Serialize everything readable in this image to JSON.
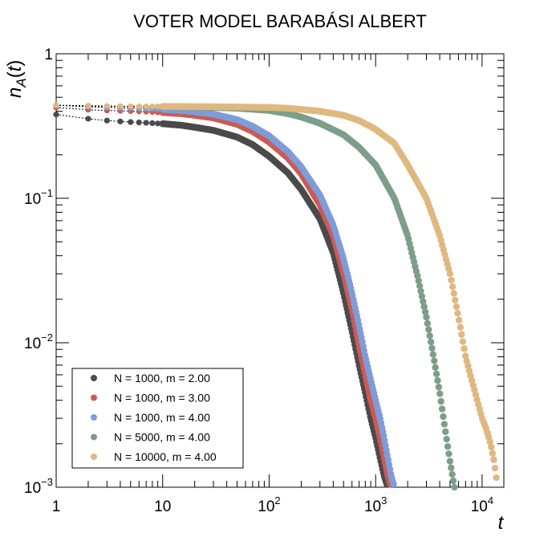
{
  "chart_data": {
    "type": "scatter",
    "title": "VOTER MODEL BARABÁSI ALBERT",
    "xlabel": "t",
    "ylabel": "n_A(t)",
    "xscale": "log",
    "yscale": "log",
    "xlim": [
      1,
      16000
    ],
    "ylim": [
      0.001,
      1
    ],
    "x_ticks": [
      {
        "value": 1,
        "base": "1",
        "exp": ""
      },
      {
        "value": 10,
        "base": "10",
        "exp": ""
      },
      {
        "value": 100,
        "base": "10",
        "exp": "2"
      },
      {
        "value": 1000,
        "base": "10",
        "exp": "3"
      },
      {
        "value": 10000,
        "base": "10",
        "exp": "4"
      }
    ],
    "y_ticks": [
      {
        "value": 1,
        "base": "1",
        "exp": ""
      },
      {
        "value": 0.1,
        "base": "10",
        "exp": "−1"
      },
      {
        "value": 0.01,
        "base": "10",
        "exp": "−2"
      },
      {
        "value": 0.001,
        "base": "10",
        "exp": "−3"
      }
    ],
    "legend_position": "bottom-left",
    "grid": false,
    "series": [
      {
        "name": "N = 1000, m = 2.00",
        "color": "#4a4a4a",
        "points": [
          [
            1,
            0.38
          ],
          [
            2,
            0.355
          ],
          [
            3,
            0.345
          ],
          [
            4,
            0.34
          ],
          [
            5,
            0.337
          ],
          [
            7,
            0.333
          ],
          [
            10,
            0.328
          ],
          [
            15,
            0.32
          ],
          [
            20,
            0.31
          ],
          [
            30,
            0.295
          ],
          [
            50,
            0.265
          ],
          [
            70,
            0.235
          ],
          [
            100,
            0.195
          ],
          [
            150,
            0.15
          ],
          [
            200,
            0.115
          ],
          [
            300,
            0.072
          ],
          [
            400,
            0.042
          ],
          [
            500,
            0.022
          ],
          [
            600,
            0.012
          ],
          [
            700,
            0.007
          ],
          [
            800,
            0.0045
          ],
          [
            900,
            0.003
          ],
          [
            1000,
            0.0022
          ],
          [
            1100,
            0.0016
          ],
          [
            1200,
            0.0012
          ],
          [
            1300,
            0.001
          ]
        ]
      },
      {
        "name": "N = 1000, m = 3.00",
        "color": "#cc5a55",
        "points": [
          [
            1,
            0.425
          ],
          [
            2,
            0.41
          ],
          [
            3,
            0.405
          ],
          [
            4,
            0.403
          ],
          [
            5,
            0.401
          ],
          [
            7,
            0.398
          ],
          [
            10,
            0.392
          ],
          [
            15,
            0.385
          ],
          [
            20,
            0.375
          ],
          [
            30,
            0.36
          ],
          [
            50,
            0.325
          ],
          [
            70,
            0.29
          ],
          [
            100,
            0.245
          ],
          [
            150,
            0.19
          ],
          [
            200,
            0.148
          ],
          [
            300,
            0.09
          ],
          [
            400,
            0.055
          ],
          [
            500,
            0.03
          ],
          [
            600,
            0.017
          ],
          [
            700,
            0.0095
          ],
          [
            800,
            0.006
          ],
          [
            900,
            0.004
          ],
          [
            1000,
            0.003
          ],
          [
            1100,
            0.0022
          ],
          [
            1200,
            0.0016
          ],
          [
            1300,
            0.0012
          ],
          [
            1400,
            0.001
          ]
        ]
      },
      {
        "name": "N = 1000, m = 4.00",
        "color": "#7f9cd8",
        "points": [
          [
            1,
            0.44
          ],
          [
            2,
            0.43
          ],
          [
            3,
            0.425
          ],
          [
            4,
            0.422
          ],
          [
            5,
            0.42
          ],
          [
            7,
            0.417
          ],
          [
            10,
            0.413
          ],
          [
            15,
            0.405
          ],
          [
            20,
            0.397
          ],
          [
            30,
            0.382
          ],
          [
            50,
            0.35
          ],
          [
            70,
            0.315
          ],
          [
            100,
            0.27
          ],
          [
            150,
            0.21
          ],
          [
            200,
            0.165
          ],
          [
            300,
            0.105
          ],
          [
            400,
            0.065
          ],
          [
            500,
            0.038
          ],
          [
            600,
            0.022
          ],
          [
            700,
            0.013
          ],
          [
            800,
            0.008
          ],
          [
            900,
            0.0055
          ],
          [
            1000,
            0.004
          ],
          [
            1100,
            0.003
          ],
          [
            1200,
            0.0022
          ],
          [
            1300,
            0.0016
          ],
          [
            1400,
            0.0012
          ],
          [
            1500,
            0.001
          ]
        ]
      },
      {
        "name": "N = 5000, m = 4.00",
        "color": "#7d9e8a",
        "points": [
          [
            1,
            0.44
          ],
          [
            2,
            0.435
          ],
          [
            3,
            0.433
          ],
          [
            4,
            0.432
          ],
          [
            5,
            0.431
          ],
          [
            7,
            0.43
          ],
          [
            10,
            0.43
          ],
          [
            20,
            0.428
          ],
          [
            30,
            0.425
          ],
          [
            50,
            0.42
          ],
          [
            70,
            0.413
          ],
          [
            100,
            0.405
          ],
          [
            150,
            0.385
          ],
          [
            200,
            0.365
          ],
          [
            300,
            0.33
          ],
          [
            500,
            0.275
          ],
          [
            700,
            0.225
          ],
          [
            1000,
            0.17
          ],
          [
            1500,
            0.1
          ],
          [
            2000,
            0.055
          ],
          [
            2500,
            0.028
          ],
          [
            3000,
            0.015
          ],
          [
            3500,
            0.008
          ],
          [
            4000,
            0.0045
          ],
          [
            4500,
            0.0025
          ],
          [
            5000,
            0.0015
          ],
          [
            5500,
            0.001
          ]
        ]
      },
      {
        "name": "N = 10000, m = 4.00",
        "color": "#dfb87f",
        "points": [
          [
            1,
            0.44
          ],
          [
            2,
            0.437
          ],
          [
            3,
            0.435
          ],
          [
            4,
            0.434
          ],
          [
            5,
            0.433
          ],
          [
            7,
            0.432
          ],
          [
            10,
            0.432
          ],
          [
            20,
            0.431
          ],
          [
            30,
            0.43
          ],
          [
            50,
            0.428
          ],
          [
            70,
            0.427
          ],
          [
            100,
            0.425
          ],
          [
            150,
            0.42
          ],
          [
            200,
            0.412
          ],
          [
            300,
            0.4
          ],
          [
            500,
            0.375
          ],
          [
            700,
            0.345
          ],
          [
            1000,
            0.3
          ],
          [
            1500,
            0.24
          ],
          [
            2000,
            0.17
          ],
          [
            3000,
            0.1
          ],
          [
            4000,
            0.055
          ],
          [
            5000,
            0.03
          ],
          [
            6000,
            0.015
          ],
          [
            7000,
            0.008
          ],
          [
            8000,
            0.0055
          ],
          [
            9000,
            0.004
          ],
          [
            10000,
            0.003
          ],
          [
            11000,
            0.0025
          ],
          [
            12000,
            0.002
          ],
          [
            13000,
            0.0015
          ],
          [
            14000,
            0.001
          ]
        ]
      }
    ]
  }
}
